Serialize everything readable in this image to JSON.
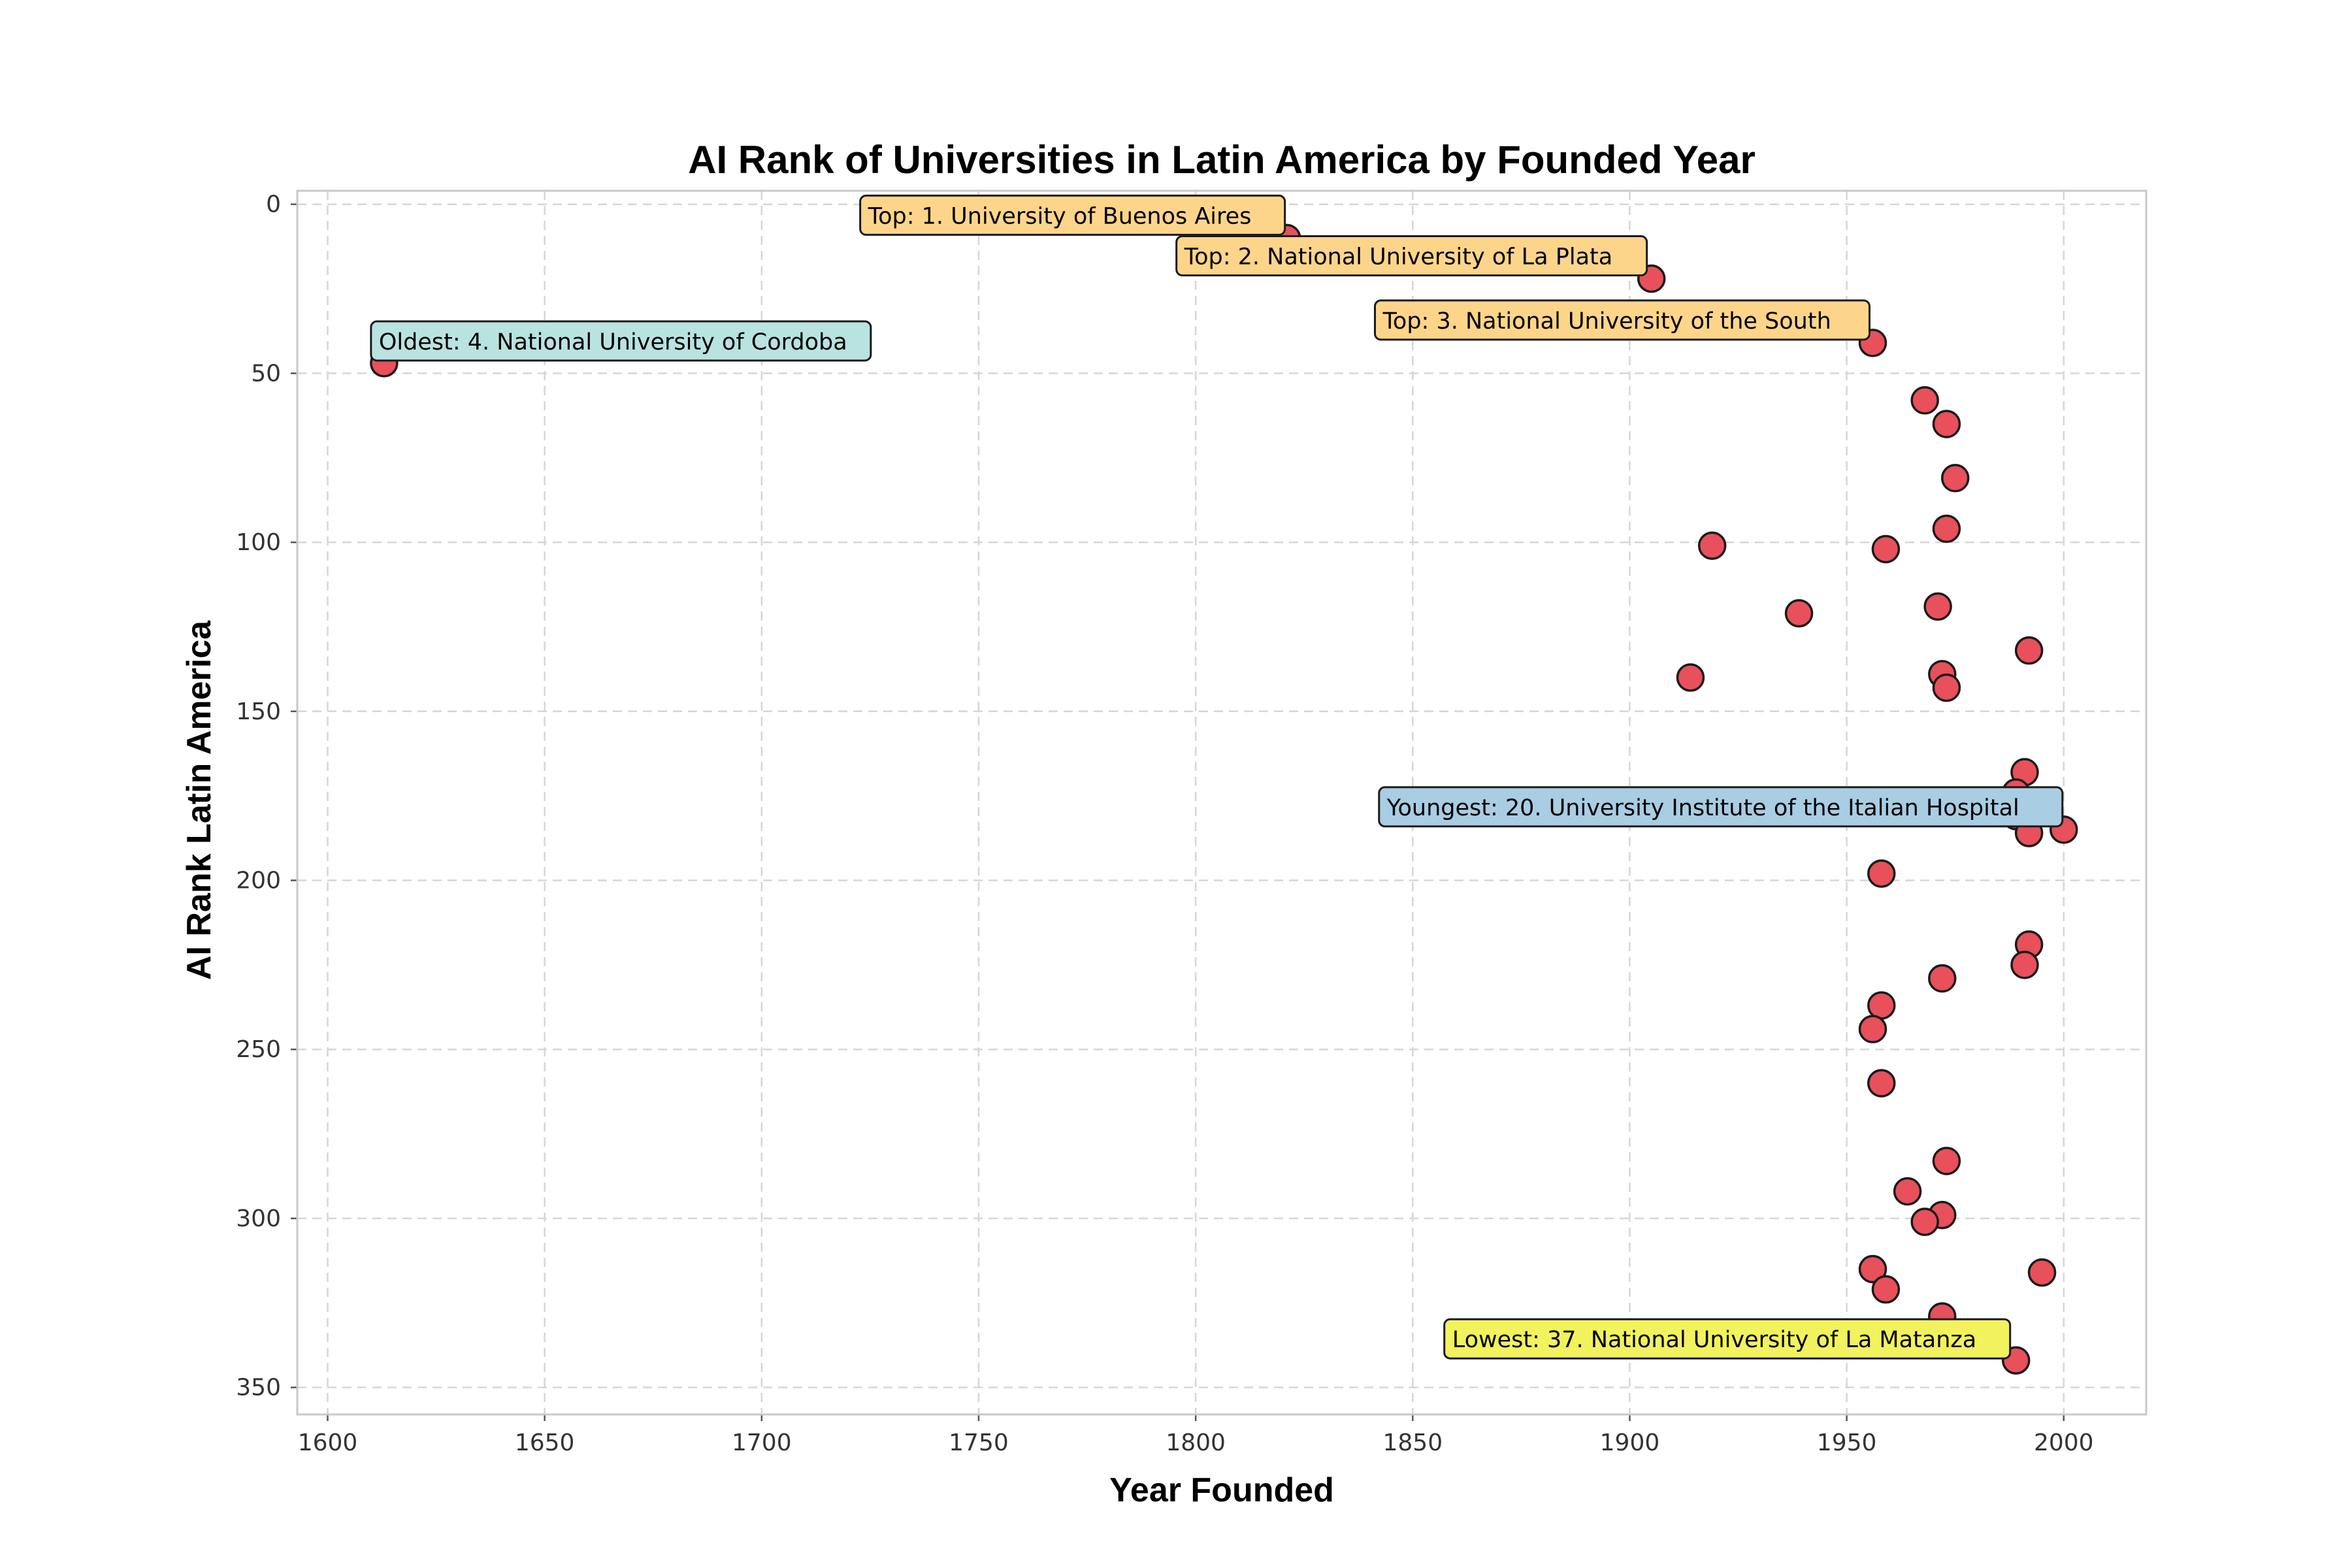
{
  "chart_data": {
    "type": "scatter",
    "title": "AI Rank of Universities in Latin America by Founded Year",
    "xlabel": "Year Founded",
    "ylabel": "AI Rank Latin America",
    "xlim": [
      1593,
      2019
    ],
    "ylim": [
      358,
      -4
    ],
    "y_inverted": true,
    "x_ticks": [
      1600,
      1650,
      1700,
      1750,
      1800,
      1850,
      1900,
      1950,
      2000
    ],
    "y_ticks": [
      0,
      50,
      100,
      150,
      200,
      250,
      300,
      350
    ],
    "grid": true,
    "marker_color": "#e8505b",
    "marker_edge_color": "#1a1a1a",
    "points": [
      {
        "x": 1613,
        "y": 47
      },
      {
        "x": 1821,
        "y": 10
      },
      {
        "x": 1905,
        "y": 22
      },
      {
        "x": 1956,
        "y": 41
      },
      {
        "x": 1968,
        "y": 58
      },
      {
        "x": 1973,
        "y": 65
      },
      {
        "x": 1975,
        "y": 81
      },
      {
        "x": 1919,
        "y": 101
      },
      {
        "x": 1959,
        "y": 102
      },
      {
        "x": 1973,
        "y": 96
      },
      {
        "x": 1939,
        "y": 121
      },
      {
        "x": 1971,
        "y": 119
      },
      {
        "x": 1992,
        "y": 132
      },
      {
        "x": 1914,
        "y": 140
      },
      {
        "x": 1972,
        "y": 139
      },
      {
        "x": 1973,
        "y": 143
      },
      {
        "x": 1991,
        "y": 168
      },
      {
        "x": 1989,
        "y": 174
      },
      {
        "x": 1989,
        "y": 181
      },
      {
        "x": 1992,
        "y": 186
      },
      {
        "x": 2000,
        "y": 185
      },
      {
        "x": 1958,
        "y": 198
      },
      {
        "x": 1992,
        "y": 219
      },
      {
        "x": 1991,
        "y": 225
      },
      {
        "x": 1972,
        "y": 229
      },
      {
        "x": 1958,
        "y": 237
      },
      {
        "x": 1956,
        "y": 244
      },
      {
        "x": 1958,
        "y": 260
      },
      {
        "x": 1973,
        "y": 283
      },
      {
        "x": 1964,
        "y": 292
      },
      {
        "x": 1972,
        "y": 299
      },
      {
        "x": 1968,
        "y": 301
      },
      {
        "x": 1956,
        "y": 315
      },
      {
        "x": 1995,
        "y": 316
      },
      {
        "x": 1959,
        "y": 321
      },
      {
        "x": 1972,
        "y": 329
      },
      {
        "x": 1989,
        "y": 342
      }
    ],
    "annotations": [
      {
        "text": "Top: 1. University of Buenos Aires",
        "x": 1821,
        "y": 10,
        "color": "#fdd58a"
      },
      {
        "text": "Top: 2. National University of La Plata",
        "x": 1905,
        "y": 22,
        "color": "#fdd58a"
      },
      {
        "text": "Top: 3. National University of the South",
        "x": 1956,
        "y": 41,
        "color": "#fdd58a"
      },
      {
        "text": "Oldest: 4. National University of Cordoba",
        "x": 1613,
        "y": 47,
        "color": "#b9e3e0"
      },
      {
        "text": "Youngest: 20. University Institute of the Italian Hospital",
        "x": 2000,
        "y": 185,
        "color": "#a9cde3"
      },
      {
        "text": "Lowest: 37. National University of La Matanza",
        "x": 1989,
        "y": 342,
        "color": "#f2f25e"
      }
    ]
  }
}
